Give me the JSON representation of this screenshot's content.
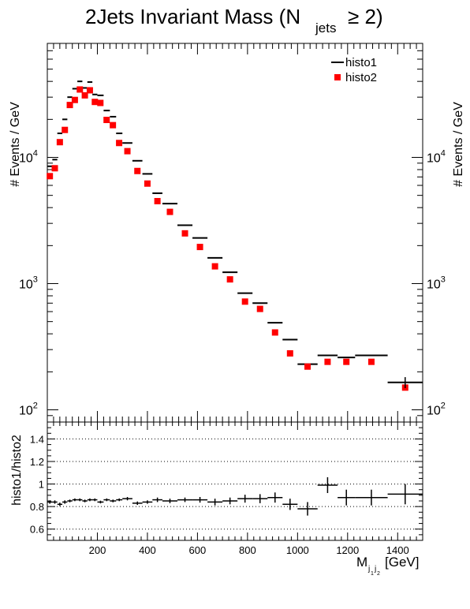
{
  "chart_data": [
    {
      "type": "scatter",
      "title_main": "2Jets Invariant Mass (N",
      "title_sub": "jets",
      "title_rel": "≥ 2)",
      "ylabel": "# Events / GeV",
      "yscale": "log",
      "ylim": [
        80,
        80000
      ],
      "xlim": [
        0,
        1500
      ],
      "y_ticks": [
        {
          "base": "10",
          "exp": "4",
          "value": 10000
        },
        {
          "base": "10",
          "exp": "3",
          "value": 1000
        },
        {
          "base": "10",
          "exp": "2",
          "value": 100
        }
      ],
      "legend_position": "top-right",
      "series": [
        {
          "name": "histo1",
          "marker": "line",
          "color": "#000000",
          "points": [
            {
              "xlo": 0,
              "xhi": 20,
              "y": 8500
            },
            {
              "xlo": 20,
              "xhi": 40,
              "y": 9600
            },
            {
              "xlo": 40,
              "xhi": 60,
              "y": 15500
            },
            {
              "xlo": 60,
              "xhi": 80,
              "y": 20000
            },
            {
              "xlo": 80,
              "xhi": 100,
              "y": 30000
            },
            {
              "xlo": 100,
              "xhi": 120,
              "y": 35000
            },
            {
              "xlo": 120,
              "xhi": 140,
              "y": 40000
            },
            {
              "xlo": 140,
              "xhi": 160,
              "y": 35500
            },
            {
              "xlo": 160,
              "xhi": 180,
              "y": 39500
            },
            {
              "xlo": 180,
              "xhi": 200,
              "y": 31500
            },
            {
              "xlo": 200,
              "xhi": 225,
              "y": 31000
            },
            {
              "xlo": 225,
              "xhi": 250,
              "y": 23500
            },
            {
              "xlo": 250,
              "xhi": 275,
              "y": 21000
            },
            {
              "xlo": 275,
              "xhi": 300,
              "y": 15500
            },
            {
              "xlo": 300,
              "xhi": 340,
              "y": 13000
            },
            {
              "xlo": 340,
              "xhi": 380,
              "y": 9400
            },
            {
              "xlo": 380,
              "xhi": 420,
              "y": 7400
            },
            {
              "xlo": 420,
              "xhi": 460,
              "y": 5200
            },
            {
              "xlo": 460,
              "xhi": 520,
              "y": 4300
            },
            {
              "xlo": 520,
              "xhi": 580,
              "y": 2900
            },
            {
              "xlo": 580,
              "xhi": 640,
              "y": 2300
            },
            {
              "xlo": 640,
              "xhi": 700,
              "y": 1600
            },
            {
              "xlo": 700,
              "xhi": 760,
              "y": 1230
            },
            {
              "xlo": 760,
              "xhi": 820,
              "y": 840
            },
            {
              "xlo": 820,
              "xhi": 880,
              "y": 700
            },
            {
              "xlo": 880,
              "xhi": 940,
              "y": 490
            },
            {
              "xlo": 940,
              "xhi": 1000,
              "y": 360
            },
            {
              "xlo": 1000,
              "xhi": 1080,
              "y": 230
            },
            {
              "xlo": 1080,
              "xhi": 1160,
              "y": 270
            },
            {
              "xlo": 1160,
              "xhi": 1230,
              "y": 260
            },
            {
              "xlo": 1230,
              "xhi": 1360,
              "y": 270
            },
            {
              "xlo": 1360,
              "xhi": 1500,
              "y": 165
            }
          ]
        },
        {
          "name": "histo2",
          "marker": "square",
          "color": "#ff0000",
          "points": [
            {
              "x": 10,
              "y": 7100
            },
            {
              "x": 30,
              "y": 8200
            },
            {
              "x": 50,
              "y": 13200
            },
            {
              "x": 70,
              "y": 16500
            },
            {
              "x": 90,
              "y": 26000
            },
            {
              "x": 110,
              "y": 28500
            },
            {
              "x": 130,
              "y": 34500
            },
            {
              "x": 150,
              "y": 31000
            },
            {
              "x": 170,
              "y": 34000
            },
            {
              "x": 190,
              "y": 27500
            },
            {
              "x": 212,
              "y": 27000
            },
            {
              "x": 237,
              "y": 19800
            },
            {
              "x": 262,
              "y": 18000
            },
            {
              "x": 287,
              "y": 13000
            },
            {
              "x": 320,
              "y": 11200
            },
            {
              "x": 360,
              "y": 7800
            },
            {
              "x": 400,
              "y": 6200
            },
            {
              "x": 440,
              "y": 4500
            },
            {
              "x": 490,
              "y": 3700
            },
            {
              "x": 550,
              "y": 2500
            },
            {
              "x": 610,
              "y": 1950
            },
            {
              "x": 670,
              "y": 1370
            },
            {
              "x": 730,
              "y": 1080
            },
            {
              "x": 790,
              "y": 720
            },
            {
              "x": 850,
              "y": 630
            },
            {
              "x": 910,
              "y": 410
            },
            {
              "x": 970,
              "y": 280
            },
            {
              "x": 1040,
              "y": 220
            },
            {
              "x": 1120,
              "y": 240
            },
            {
              "x": 1195,
              "y": 240
            },
            {
              "x": 1295,
              "y": 240
            },
            {
              "x": 1430,
              "y": 150
            }
          ]
        }
      ]
    },
    {
      "type": "scatter",
      "ylabel": "histo1/histo2",
      "xlabel_main": "M",
      "xlabel_sub": "j",
      "xlabel_sub2": "1",
      "xlabel_sub3": "j",
      "xlabel_sub4": "2",
      "xlabel_unit": "[GeV]",
      "xlim": [
        0,
        1500
      ],
      "ylim": [
        0.5,
        1.55
      ],
      "grid": "horizontal-dotted",
      "x_ticks": [
        "200",
        "400",
        "600",
        "800",
        "1000",
        "1200",
        "1400"
      ],
      "y_ticks": [
        "0.6",
        "0.8",
        "1",
        "1.2",
        "1.4"
      ],
      "series": [
        {
          "name": "histo1/histo2",
          "color": "#000000",
          "points": [
            {
              "xlo": 0,
              "xhi": 20,
              "y": 0.84,
              "err": 0.015
            },
            {
              "xlo": 20,
              "xhi": 40,
              "y": 0.84,
              "err": 0.015
            },
            {
              "xlo": 40,
              "xhi": 60,
              "y": 0.82,
              "err": 0.015
            },
            {
              "xlo": 60,
              "xhi": 80,
              "y": 0.84,
              "err": 0.015
            },
            {
              "xlo": 80,
              "xhi": 100,
              "y": 0.85,
              "err": 0.012
            },
            {
              "xlo": 100,
              "xhi": 120,
              "y": 0.86,
              "err": 0.012
            },
            {
              "xlo": 120,
              "xhi": 140,
              "y": 0.86,
              "err": 0.012
            },
            {
              "xlo": 140,
              "xhi": 160,
              "y": 0.85,
              "err": 0.012
            },
            {
              "xlo": 160,
              "xhi": 180,
              "y": 0.86,
              "err": 0.012
            },
            {
              "xlo": 180,
              "xhi": 200,
              "y": 0.86,
              "err": 0.012
            },
            {
              "xlo": 200,
              "xhi": 225,
              "y": 0.84,
              "err": 0.012
            },
            {
              "xlo": 225,
              "xhi": 250,
              "y": 0.86,
              "err": 0.012
            },
            {
              "xlo": 250,
              "xhi": 275,
              "y": 0.85,
              "err": 0.012
            },
            {
              "xlo": 275,
              "xhi": 300,
              "y": 0.86,
              "err": 0.012
            },
            {
              "xlo": 300,
              "xhi": 340,
              "y": 0.87,
              "err": 0.015
            },
            {
              "xlo": 340,
              "xhi": 380,
              "y": 0.83,
              "err": 0.015
            },
            {
              "xlo": 380,
              "xhi": 420,
              "y": 0.84,
              "err": 0.015
            },
            {
              "xlo": 420,
              "xhi": 460,
              "y": 0.86,
              "err": 0.02
            },
            {
              "xlo": 460,
              "xhi": 520,
              "y": 0.85,
              "err": 0.02
            },
            {
              "xlo": 520,
              "xhi": 580,
              "y": 0.86,
              "err": 0.02
            },
            {
              "xlo": 580,
              "xhi": 640,
              "y": 0.86,
              "err": 0.025
            },
            {
              "xlo": 640,
              "xhi": 700,
              "y": 0.84,
              "err": 0.03
            },
            {
              "xlo": 700,
              "xhi": 760,
              "y": 0.85,
              "err": 0.03
            },
            {
              "xlo": 760,
              "xhi": 820,
              "y": 0.87,
              "err": 0.035
            },
            {
              "xlo": 820,
              "xhi": 880,
              "y": 0.87,
              "err": 0.04
            },
            {
              "xlo": 880,
              "xhi": 940,
              "y": 0.88,
              "err": 0.045
            },
            {
              "xlo": 940,
              "xhi": 1000,
              "y": 0.82,
              "err": 0.05
            },
            {
              "xlo": 1000,
              "xhi": 1080,
              "y": 0.78,
              "err": 0.06
            },
            {
              "xlo": 1080,
              "xhi": 1160,
              "y": 0.99,
              "err": 0.07
            },
            {
              "xlo": 1160,
              "xhi": 1230,
              "y": 0.88,
              "err": 0.07
            },
            {
              "xlo": 1230,
              "xhi": 1360,
              "y": 0.88,
              "err": 0.07
            },
            {
              "xlo": 1360,
              "xhi": 1500,
              "y": 0.91,
              "err": 0.09
            }
          ]
        }
      ]
    }
  ]
}
